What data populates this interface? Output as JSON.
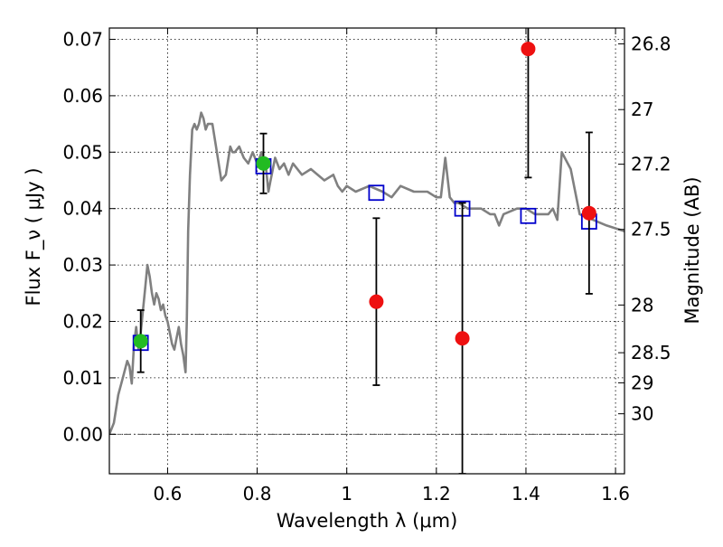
{
  "chart_data": {
    "type": "scatter",
    "title": "",
    "xlabel": "Wavelength  λ (μm)",
    "ylabel": "Flux  F_ν  ( μJy )",
    "y2label": "Magnitude (AB)",
    "xlim": [
      0.47,
      1.62
    ],
    "ylim": [
      -0.007,
      0.072
    ],
    "grid": true,
    "x_ticks": [
      0.6,
      0.8,
      1.0,
      1.2,
      1.4,
      1.6
    ],
    "x_tick_labels": [
      "0.6",
      "0.8",
      "1",
      "1.2",
      "1.4",
      "1.6"
    ],
    "y_ticks": [
      0.0,
      0.01,
      0.02,
      0.03,
      0.04,
      0.05,
      0.06,
      0.07
    ],
    "y_tick_labels": [
      "0.00",
      "0.01",
      "0.02",
      "0.03",
      "0.04",
      "0.05",
      "0.06",
      "0.07"
    ],
    "y2_ticks": [
      26.8,
      27,
      27.2,
      27.5,
      28,
      28.5,
      29,
      30
    ],
    "y2_tick_labels": [
      "26.8",
      "27",
      "27.2",
      "27.5",
      "28",
      "28.5",
      "29",
      "30"
    ],
    "zero_line": 0.0,
    "series": [
      {
        "kind": "line",
        "color": "#808080",
        "x": [
          0.47,
          0.48,
          0.49,
          0.5,
          0.51,
          0.515,
          0.52,
          0.525,
          0.53,
          0.535,
          0.54,
          0.545,
          0.55,
          0.555,
          0.56,
          0.565,
          0.57,
          0.575,
          0.58,
          0.585,
          0.59,
          0.595,
          0.6,
          0.605,
          0.61,
          0.615,
          0.62,
          0.625,
          0.63,
          0.635,
          0.64,
          0.643,
          0.646,
          0.65,
          0.655,
          0.66,
          0.665,
          0.67,
          0.675,
          0.68,
          0.685,
          0.69,
          0.7,
          0.71,
          0.72,
          0.73,
          0.74,
          0.745,
          0.75,
          0.76,
          0.77,
          0.78,
          0.79,
          0.8,
          0.81,
          0.82,
          0.825,
          0.83,
          0.84,
          0.85,
          0.86,
          0.87,
          0.88,
          0.9,
          0.92,
          0.95,
          0.97,
          0.98,
          0.99,
          1.0,
          1.02,
          1.05,
          1.08,
          1.1,
          1.12,
          1.15,
          1.18,
          1.2,
          1.21,
          1.22,
          1.23,
          1.24,
          1.25,
          1.27,
          1.3,
          1.32,
          1.33,
          1.34,
          1.35,
          1.38,
          1.4,
          1.42,
          1.45,
          1.46,
          1.47,
          1.48,
          1.5,
          1.52,
          1.55,
          1.58,
          1.62
        ],
        "y": [
          0.0,
          0.002,
          0.007,
          0.01,
          0.013,
          0.012,
          0.009,
          0.016,
          0.019,
          0.015,
          0.018,
          0.022,
          0.026,
          0.03,
          0.028,
          0.025,
          0.023,
          0.025,
          0.024,
          0.022,
          0.023,
          0.021,
          0.02,
          0.018,
          0.016,
          0.015,
          0.017,
          0.019,
          0.016,
          0.014,
          0.011,
          0.02,
          0.036,
          0.046,
          0.054,
          0.055,
          0.054,
          0.055,
          0.057,
          0.056,
          0.054,
          0.055,
          0.055,
          0.05,
          0.045,
          0.046,
          0.051,
          0.05,
          0.05,
          0.051,
          0.049,
          0.048,
          0.05,
          0.048,
          0.05,
          0.047,
          0.043,
          0.045,
          0.049,
          0.047,
          0.048,
          0.046,
          0.048,
          0.046,
          0.047,
          0.045,
          0.046,
          0.044,
          0.043,
          0.044,
          0.043,
          0.044,
          0.043,
          0.042,
          0.044,
          0.043,
          0.043,
          0.042,
          0.042,
          0.049,
          0.042,
          0.041,
          0.041,
          0.04,
          0.04,
          0.039,
          0.039,
          0.037,
          0.039,
          0.04,
          0.04,
          0.039,
          0.039,
          0.04,
          0.038,
          0.05,
          0.047,
          0.039,
          0.038,
          0.037,
          0.036
        ]
      },
      {
        "kind": "open-square",
        "color": "#0000cc",
        "points": [
          {
            "x": 0.54,
            "y": 0.0162
          },
          {
            "x": 0.814,
            "y": 0.0475
          },
          {
            "x": 1.066,
            "y": 0.0428
          },
          {
            "x": 1.258,
            "y": 0.04
          },
          {
            "x": 1.405,
            "y": 0.0387
          },
          {
            "x": 1.541,
            "y": 0.0377
          }
        ]
      },
      {
        "kind": "filled-circle",
        "color": "#22bb22",
        "points": [
          {
            "x": 0.54,
            "y": 0.0165,
            "err": 0.0055
          },
          {
            "x": 0.814,
            "y": 0.048,
            "err": 0.0053
          }
        ]
      },
      {
        "kind": "filled-circle",
        "color": "#ee1111",
        "points": [
          {
            "x": 1.066,
            "y": 0.0235,
            "err": 0.0148
          },
          {
            "x": 1.258,
            "y": 0.017,
            "err": 0.024
          },
          {
            "x": 1.405,
            "y": 0.0683,
            "err": 0.0228
          },
          {
            "x": 1.541,
            "y": 0.0392,
            "err": 0.0143
          }
        ]
      }
    ]
  }
}
